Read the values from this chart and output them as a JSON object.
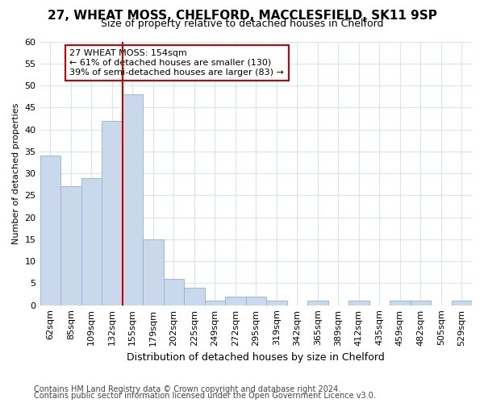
{
  "title1": "27, WHEAT MOSS, CHELFORD, MACCLESFIELD, SK11 9SP",
  "title2": "Size of property relative to detached houses in Chelford",
  "xlabel": "Distribution of detached houses by size in Chelford",
  "ylabel": "Number of detached properties",
  "categories": [
    "62sqm",
    "85sqm",
    "109sqm",
    "132sqm",
    "155sqm",
    "179sqm",
    "202sqm",
    "225sqm",
    "249sqm",
    "272sqm",
    "295sqm",
    "319sqm",
    "342sqm",
    "365sqm",
    "389sqm",
    "412sqm",
    "435sqm",
    "459sqm",
    "482sqm",
    "505sqm",
    "529sqm"
  ],
  "values": [
    34,
    27,
    29,
    42,
    48,
    15,
    6,
    4,
    1,
    2,
    2,
    1,
    0,
    1,
    0,
    1,
    0,
    1,
    1,
    0,
    1
  ],
  "bar_color": "#c9d9eb",
  "bar_edge_color": "#8ab4d4",
  "ylim": [
    0,
    60
  ],
  "yticks": [
    0,
    5,
    10,
    15,
    20,
    25,
    30,
    35,
    40,
    45,
    50,
    55,
    60
  ],
  "vline_x": 3.5,
  "annotation_title": "27 WHEAT MOSS: 154sqm",
  "annotation_line1": "← 61% of detached houses are smaller (130)",
  "annotation_line2": "39% of semi-detached houses are larger (83) →",
  "footer1": "Contains HM Land Registry data © Crown copyright and database right 2024.",
  "footer2": "Contains public sector information licensed under the Open Government Licence v3.0.",
  "bg_color": "#ffffff",
  "plot_bg_color": "#ffffff",
  "grid_color": "#d8e4f0",
  "annotation_box_color": "#cc0000",
  "vline_color": "#cc0000",
  "title1_fontsize": 11,
  "title2_fontsize": 9,
  "xlabel_fontsize": 9,
  "ylabel_fontsize": 8,
  "tick_fontsize": 8,
  "ann_fontsize": 8,
  "footer_fontsize": 7
}
